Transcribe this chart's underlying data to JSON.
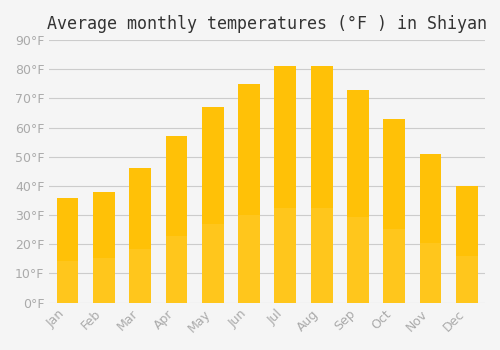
{
  "title": "Average monthly temperatures (°F ) in Shiyan",
  "months": [
    "Jan",
    "Feb",
    "Mar",
    "Apr",
    "May",
    "Jun",
    "Jul",
    "Aug",
    "Sep",
    "Oct",
    "Nov",
    "Dec"
  ],
  "values": [
    36,
    38,
    46,
    57,
    67,
    75,
    81,
    81,
    73,
    63,
    51,
    40
  ],
  "bar_color_top": "#FFC107",
  "bar_color_bottom": "#FFD54F",
  "background_color": "#F5F5F5",
  "grid_color": "#CCCCCC",
  "ylim": [
    0,
    90
  ],
  "yticks": [
    0,
    10,
    20,
    30,
    40,
    50,
    60,
    70,
    80,
    90
  ],
  "title_fontsize": 12,
  "tick_fontsize": 9,
  "tick_color": "#AAAAAA",
  "spine_color": "#CCCCCC"
}
